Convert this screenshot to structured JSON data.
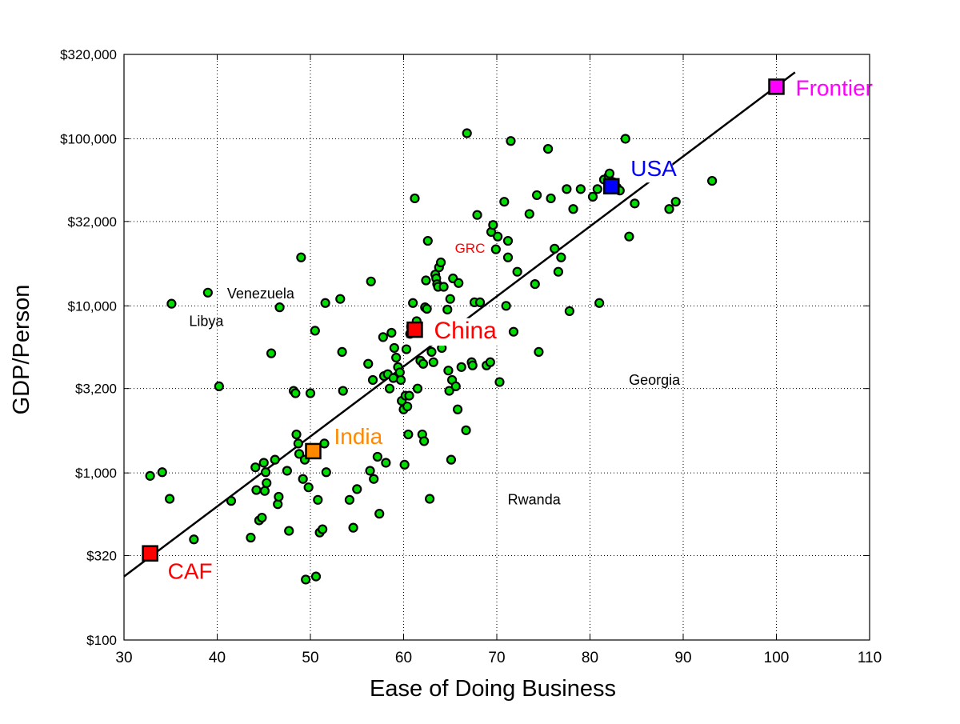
{
  "chart_data": {
    "type": "scatter",
    "xlabel": "Ease of Doing Business",
    "ylabel": "GDP/Person",
    "xlim": [
      30,
      110
    ],
    "ylim": [
      100,
      320000
    ],
    "y_scale": "log",
    "grid": true,
    "x_ticks": [
      30,
      40,
      50,
      60,
      70,
      80,
      90,
      100,
      110
    ],
    "x_tick_labels": [
      "30",
      "40",
      "50",
      "60",
      "70",
      "80",
      "90",
      "100",
      "110"
    ],
    "y_ticks": [
      100,
      320,
      1000,
      3200,
      10000,
      32000,
      100000,
      320000
    ],
    "y_tick_labels": [
      "$100",
      "$320",
      "$1,000",
      "$3,200",
      "$10,000",
      "$32,000",
      "$100,000",
      "$320,000"
    ],
    "trend_line": {
      "x": [
        30,
        102
      ],
      "y": [
        240,
        250000
      ]
    },
    "colors": {
      "points_fill": "#00dd00",
      "points_edge": "#000000",
      "trend": "#000000",
      "grid": "#000000"
    },
    "highlighted": [
      {
        "label": "CAF",
        "x": 32.8,
        "y": 330,
        "color": "#ff0000",
        "label_color": "#ff0000"
      },
      {
        "label": "India",
        "x": 50.3,
        "y": 1350,
        "color": "#ff8800",
        "label_color": "#ff8800"
      },
      {
        "label": "China",
        "x": 61.2,
        "y": 7200,
        "color": "#ff0000",
        "label_color": "#ff0000"
      },
      {
        "label": "USA",
        "x": 82.3,
        "y": 52000,
        "color": "#0000ff",
        "label_color": "#0000ff"
      },
      {
        "label": "Frontier",
        "x": 100,
        "y": 205000,
        "color": "#ff00ff",
        "label_color": "#ff00ff"
      }
    ],
    "annotations": [
      {
        "label": "Venezuela",
        "x": 39.0,
        "y": 12000,
        "color": "#000000"
      },
      {
        "label": "Libya",
        "x": 35.1,
        "y": 10300,
        "color": "#000000"
      },
      {
        "label": "Georgia",
        "x": 82.2,
        "y": 3600,
        "color": "#000000"
      },
      {
        "label": "Rwanda",
        "x": 69.2,
        "y": 700,
        "color": "#000000"
      },
      {
        "label": "GRC",
        "x": 65.5,
        "y": 22500,
        "color": "#ff0000"
      }
    ],
    "points": [
      [
        32.8,
        960
      ],
      [
        34.1,
        1010
      ],
      [
        34.9,
        700
      ],
      [
        35.1,
        10300
      ],
      [
        37.5,
        400
      ],
      [
        39.0,
        12000
      ],
      [
        40.2,
        3300
      ],
      [
        41.5,
        680
      ],
      [
        43.6,
        410
      ],
      [
        44.1,
        1080
      ],
      [
        44.2,
        790
      ],
      [
        44.5,
        520
      ],
      [
        44.8,
        540
      ],
      [
        45.0,
        1150
      ],
      [
        45.1,
        780
      ],
      [
        45.2,
        1010
      ],
      [
        45.3,
        870
      ],
      [
        45.8,
        5200
      ],
      [
        46.2,
        1200
      ],
      [
        46.5,
        650
      ],
      [
        46.6,
        720
      ],
      [
        46.7,
        9800
      ],
      [
        47.5,
        1030
      ],
      [
        47.7,
        450
      ],
      [
        48.2,
        3100
      ],
      [
        48.4,
        3000
      ],
      [
        48.5,
        1700
      ],
      [
        48.7,
        1500
      ],
      [
        48.8,
        1300
      ],
      [
        49.0,
        19500
      ],
      [
        49.2,
        920
      ],
      [
        49.4,
        1200
      ],
      [
        49.5,
        230
      ],
      [
        49.8,
        820
      ],
      [
        50.0,
        3000
      ],
      [
        50.5,
        7100
      ],
      [
        50.6,
        240
      ],
      [
        50.8,
        690
      ],
      [
        51.0,
        440
      ],
      [
        51.3,
        460
      ],
      [
        51.5,
        1500
      ],
      [
        51.6,
        10400
      ],
      [
        51.7,
        1010
      ],
      [
        53.2,
        11000
      ],
      [
        53.4,
        5300
      ],
      [
        53.5,
        3100
      ],
      [
        54.2,
        690
      ],
      [
        54.6,
        470
      ],
      [
        55.0,
        800
      ],
      [
        56.2,
        4500
      ],
      [
        56.4,
        1030
      ],
      [
        56.5,
        14000
      ],
      [
        56.7,
        3600
      ],
      [
        56.8,
        920
      ],
      [
        57.2,
        1250
      ],
      [
        57.4,
        570
      ],
      [
        57.8,
        6500
      ],
      [
        57.9,
        3800
      ],
      [
        58.1,
        1150
      ],
      [
        58.3,
        3900
      ],
      [
        58.5,
        3200
      ],
      [
        58.7,
        6900
      ],
      [
        58.9,
        3700
      ],
      [
        59.0,
        5600
      ],
      [
        59.2,
        4900
      ],
      [
        59.4,
        4300
      ],
      [
        59.6,
        4000
      ],
      [
        59.7,
        3600
      ],
      [
        59.8,
        2700
      ],
      [
        60.0,
        2400
      ],
      [
        60.1,
        1120
      ],
      [
        60.2,
        2900
      ],
      [
        60.3,
        5500
      ],
      [
        60.4,
        2500
      ],
      [
        60.5,
        1700
      ],
      [
        60.6,
        2900
      ],
      [
        60.7,
        6800
      ],
      [
        60.8,
        7500
      ],
      [
        61.0,
        10400
      ],
      [
        61.2,
        44000
      ],
      [
        61.4,
        8100
      ],
      [
        61.5,
        3200
      ],
      [
        61.8,
        4700
      ],
      [
        62.0,
        1700
      ],
      [
        62.1,
        4500
      ],
      [
        62.2,
        1550
      ],
      [
        62.3,
        9800
      ],
      [
        62.4,
        14200
      ],
      [
        62.5,
        9600
      ],
      [
        62.6,
        24500
      ],
      [
        62.8,
        700
      ],
      [
        63.0,
        5300
      ],
      [
        63.2,
        4600
      ],
      [
        63.4,
        15400
      ],
      [
        63.5,
        14600
      ],
      [
        63.6,
        13500
      ],
      [
        63.7,
        13000
      ],
      [
        63.8,
        17000
      ],
      [
        64.0,
        18200
      ],
      [
        64.1,
        5600
      ],
      [
        64.3,
        13000
      ],
      [
        64.7,
        9500
      ],
      [
        64.8,
        4100
      ],
      [
        64.9,
        3100
      ],
      [
        65.0,
        11000
      ],
      [
        65.1,
        1200
      ],
      [
        65.2,
        3600
      ],
      [
        65.3,
        14600
      ],
      [
        65.6,
        3300
      ],
      [
        65.8,
        2400
      ],
      [
        65.9,
        13700
      ],
      [
        66.2,
        4300
      ],
      [
        66.7,
        1800
      ],
      [
        66.8,
        108000
      ],
      [
        67.3,
        4600
      ],
      [
        67.4,
        4400
      ],
      [
        67.6,
        10500
      ],
      [
        67.9,
        35000
      ],
      [
        68.2,
        10500
      ],
      [
        68.9,
        4400
      ],
      [
        69.3,
        4600
      ],
      [
        69.4,
        27700
      ],
      [
        69.6,
        30500
      ],
      [
        69.9,
        21800
      ],
      [
        70.1,
        26000
      ],
      [
        70.3,
        3500
      ],
      [
        70.8,
        42000
      ],
      [
        71.0,
        10000
      ],
      [
        71.2,
        19500
      ],
      [
        71.2,
        24500
      ],
      [
        71.5,
        97000
      ],
      [
        71.8,
        7000
      ],
      [
        72.2,
        16000
      ],
      [
        73.5,
        35500
      ],
      [
        74.1,
        13500
      ],
      [
        74.3,
        46000
      ],
      [
        74.5,
        5300
      ],
      [
        75.5,
        87000
      ],
      [
        75.8,
        44000
      ],
      [
        76.2,
        22000
      ],
      [
        76.6,
        16000
      ],
      [
        76.9,
        19500
      ],
      [
        77.5,
        50000
      ],
      [
        77.8,
        9300
      ],
      [
        78.2,
        38000
      ],
      [
        79.0,
        50000
      ],
      [
        80.3,
        45000
      ],
      [
        80.8,
        50000
      ],
      [
        81.0,
        10400
      ],
      [
        81.5,
        57000
      ],
      [
        82.0,
        60000
      ],
      [
        82.1,
        62000
      ],
      [
        82.5,
        55000
      ],
      [
        82.9,
        51000
      ],
      [
        83.2,
        49000
      ],
      [
        83.8,
        100000
      ],
      [
        84.2,
        26000
      ],
      [
        84.8,
        41000
      ],
      [
        88.5,
        38000
      ],
      [
        89.2,
        42000
      ],
      [
        93.1,
        56000
      ]
    ]
  }
}
